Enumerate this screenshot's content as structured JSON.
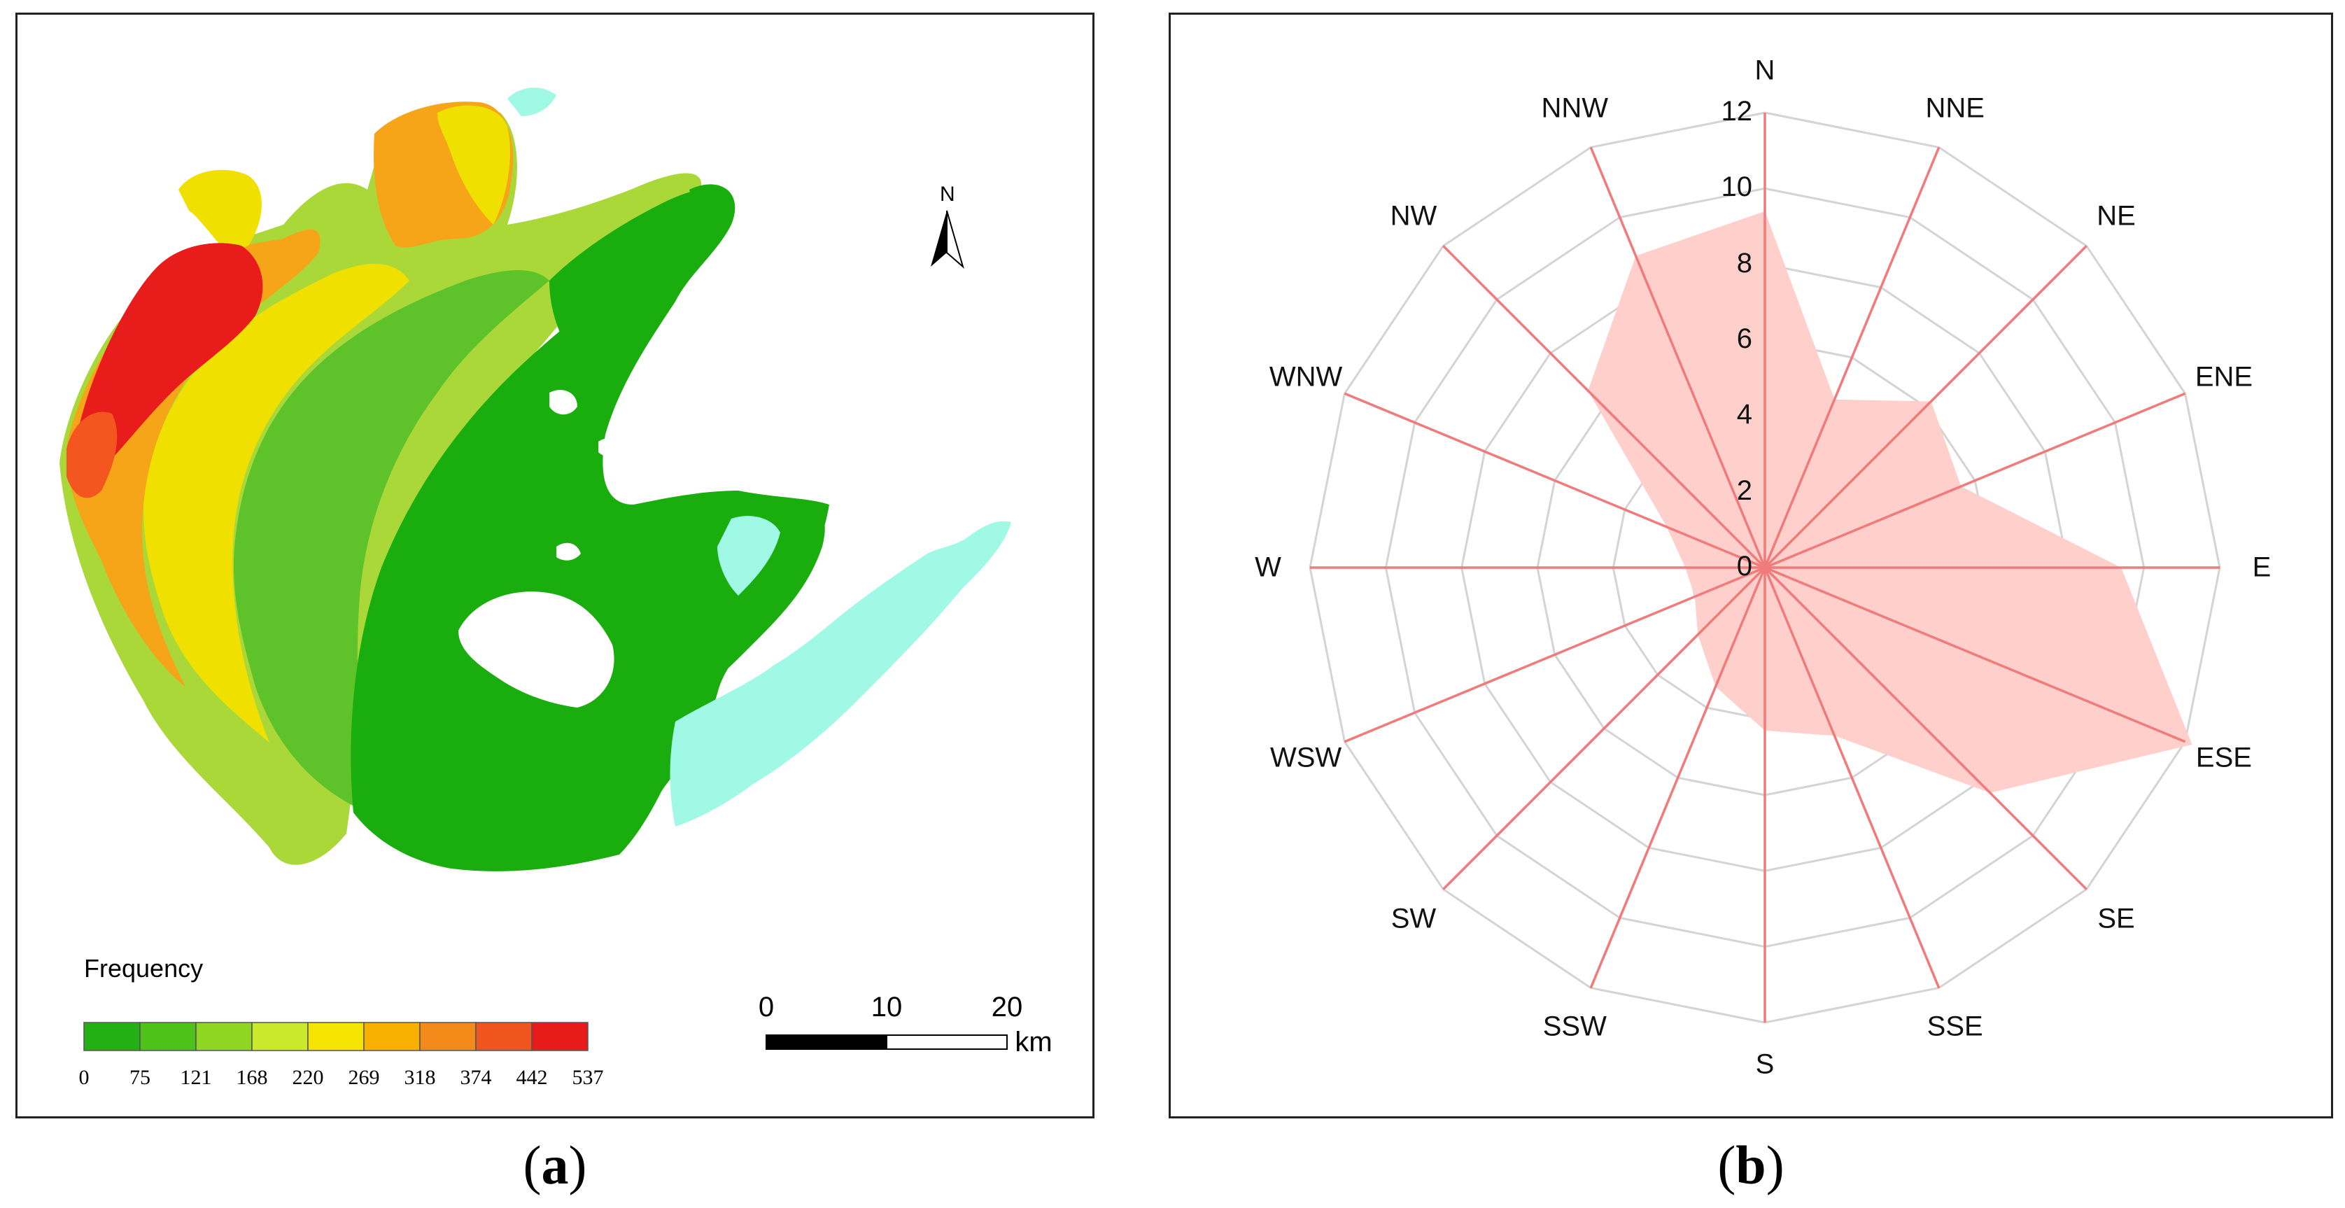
{
  "figure": {
    "captions": [
      {
        "letter": "a",
        "open": "(",
        "close": ")"
      },
      {
        "letter": "b",
        "open": "(",
        "close": ")"
      }
    ]
  },
  "map": {
    "north_label": "N",
    "legend": {
      "title": "Frequency",
      "breaks": [
        "0",
        "75",
        "121",
        "168",
        "220",
        "269",
        "318",
        "374",
        "442",
        "537"
      ],
      "colors": [
        "#22b014",
        "#4fc21a",
        "#8fd623",
        "#c9e92a",
        "#f4e400",
        "#f8b100",
        "#f48a1a",
        "#f0551f",
        "#e81b1b"
      ]
    },
    "scale_bar": {
      "labels": [
        "0",
        "10",
        "20"
      ],
      "unit": "km"
    },
    "colors": {
      "green": "#19ad0e",
      "light_green": "#5ec32a",
      "yellow_green": "#a9d838",
      "yellow": "#f0e000",
      "orange": "#f6a518",
      "red_orange": "#f3571f",
      "red": "#e91c1c",
      "cyan": "#9ff9e4"
    }
  },
  "chart_data": {
    "type": "radar",
    "title": "",
    "directions": [
      "N",
      "NNE",
      "NE",
      "ENE",
      "E",
      "ESE",
      "SE",
      "SSE",
      "S",
      "SSW",
      "SW",
      "WSW",
      "W",
      "WNW",
      "NW",
      "NNW"
    ],
    "values": [
      9.4,
      4.8,
      6.2,
      5.6,
      9.4,
      12.2,
      8.4,
      4.8,
      4.3,
      3.4,
      2.5,
      2.0,
      2.1,
      2.8,
      6.6,
      8.9
    ],
    "rlim": [
      0,
      12
    ],
    "rticks": [
      "0",
      "2",
      "4",
      "6",
      "8",
      "10",
      "12"
    ],
    "fill_color": "#ffcfcc",
    "spoke_color": "#ef7b7b",
    "ring_color": "#d4d4d4",
    "grid": true
  }
}
